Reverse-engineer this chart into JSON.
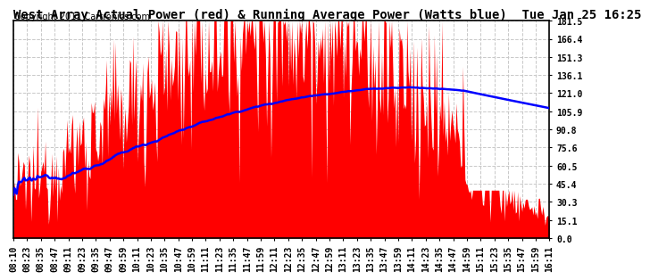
{
  "title": "West Array Actual Power (red) & Running Average Power (Watts blue)  Tue Jan 25 16:25",
  "copyright": "Copyright 2011 Cartronics.com",
  "bg_color": "#ffffff",
  "fill_color": "#ff0000",
  "line_color": "#0000ff",
  "grid_color": "#c8c8c8",
  "yticks": [
    0.0,
    15.1,
    30.3,
    45.4,
    60.5,
    75.6,
    90.8,
    105.9,
    121.0,
    136.1,
    151.3,
    166.4,
    181.5
  ],
  "ymax": 181.5,
  "ymin": 0.0,
  "xtick_labels": [
    "08:10",
    "08:23",
    "08:35",
    "08:47",
    "09:11",
    "09:23",
    "09:35",
    "09:47",
    "09:59",
    "10:11",
    "10:23",
    "10:35",
    "10:47",
    "10:59",
    "11:11",
    "11:23",
    "11:35",
    "11:47",
    "11:59",
    "12:11",
    "12:23",
    "12:35",
    "12:47",
    "12:59",
    "13:11",
    "13:23",
    "13:35",
    "13:47",
    "13:59",
    "14:11",
    "14:23",
    "14:35",
    "14:47",
    "14:59",
    "15:11",
    "15:23",
    "15:35",
    "15:47",
    "15:59",
    "16:11"
  ],
  "title_fontsize": 10,
  "tick_fontsize": 7,
  "copyright_fontsize": 7
}
